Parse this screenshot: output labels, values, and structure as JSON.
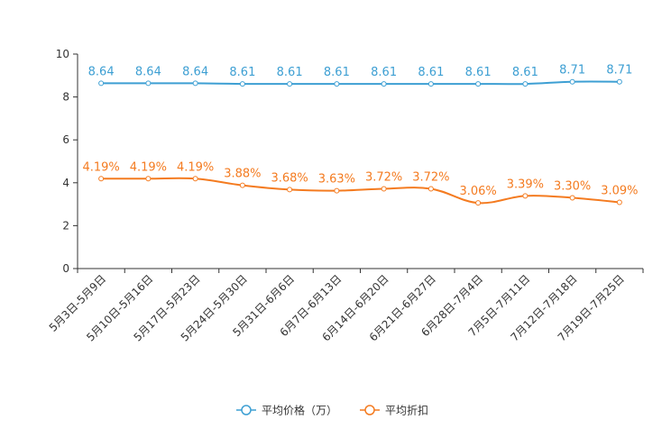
{
  "chart_data": {
    "type": "line",
    "categories": [
      "5月3日-5月9日",
      "5月10日-5月16日",
      "5月17日-5月23日",
      "5月24日-5月30日",
      "5月31日-6月6日",
      "6月7日-6月13日",
      "6月14日-6月20日",
      "6月21日-6月27日",
      "6月28日-7月4日",
      "7月5日-7月11日",
      "7月12日-7月18日",
      "7月19日-7月25日"
    ],
    "ylim": [
      0,
      10
    ],
    "yticks": [
      0,
      2,
      4,
      6,
      8,
      10
    ],
    "grid": false,
    "legend_position": "bottom-center",
    "series": [
      {
        "name": "平均价格（万）",
        "color": "#3d9fd3",
        "values": [
          8.64,
          8.64,
          8.64,
          8.61,
          8.61,
          8.61,
          8.61,
          8.61,
          8.61,
          8.61,
          8.71,
          8.71
        ],
        "labels": [
          "8.64",
          "8.64",
          "8.64",
          "8.61",
          "8.61",
          "8.61",
          "8.61",
          "8.61",
          "8.61",
          "8.61",
          "8.71",
          "8.71"
        ]
      },
      {
        "name": "平均折扣",
        "color": "#f47b20",
        "values": [
          4.19,
          4.19,
          4.19,
          3.88,
          3.68,
          3.63,
          3.72,
          3.72,
          3.06,
          3.39,
          3.3,
          3.09
        ],
        "labels": [
          "4.19%",
          "4.19%",
          "4.19%",
          "3.88%",
          "3.68%",
          "3.63%",
          "3.72%",
          "3.72%",
          "3.06%",
          "3.39%",
          "3.30%",
          "3.09%"
        ]
      }
    ]
  }
}
